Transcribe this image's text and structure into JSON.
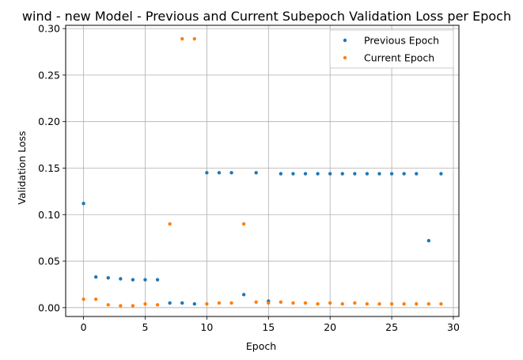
{
  "chart_data": {
    "type": "scatter",
    "title": "wind - new Model - Previous and Current Subepoch Validation Loss per Epoch",
    "xlabel": "Epoch",
    "ylabel": "Validation Loss",
    "xlim": [
      -1.45,
      30.45
    ],
    "ylim": [
      -0.0095,
      0.3035
    ],
    "xticks": [
      0,
      5,
      10,
      15,
      20,
      25,
      30
    ],
    "yticks": [
      0.0,
      0.05,
      0.1,
      0.15,
      0.2,
      0.25,
      0.3
    ],
    "ytick_labels": [
      "0.00",
      "0.05",
      "0.10",
      "0.15",
      "0.20",
      "0.25",
      "0.30"
    ],
    "grid": true,
    "legend_position": "top-right",
    "series": [
      {
        "name": "Previous Epoch",
        "color": "#1f77b4",
        "x": [
          0,
          1,
          2,
          3,
          4,
          5,
          6,
          7,
          8,
          9,
          10,
          11,
          12,
          13,
          14,
          15,
          16,
          17,
          18,
          19,
          20,
          21,
          22,
          23,
          24,
          25,
          26,
          27,
          28,
          29
        ],
        "y": [
          0.112,
          0.033,
          0.032,
          0.031,
          0.03,
          0.03,
          0.03,
          0.005,
          0.005,
          0.004,
          0.145,
          0.145,
          0.145,
          0.014,
          0.145,
          0.007,
          0.144,
          0.144,
          0.144,
          0.144,
          0.144,
          0.144,
          0.144,
          0.144,
          0.144,
          0.144,
          0.144,
          0.144,
          0.072,
          0.144
        ]
      },
      {
        "name": "Current Epoch",
        "color": "#ff7f0e",
        "x": [
          0,
          1,
          2,
          3,
          4,
          5,
          6,
          7,
          8,
          9,
          10,
          11,
          12,
          13,
          14,
          15,
          16,
          17,
          18,
          19,
          20,
          21,
          22,
          23,
          24,
          25,
          26,
          27,
          28,
          29
        ],
        "y": [
          0.009,
          0.009,
          0.003,
          0.002,
          0.002,
          0.004,
          0.003,
          0.09,
          0.289,
          0.289,
          0.004,
          0.005,
          0.005,
          0.09,
          0.006,
          0.005,
          0.006,
          0.005,
          0.005,
          0.004,
          0.005,
          0.004,
          0.005,
          0.004,
          0.004,
          0.004,
          0.004,
          0.004,
          0.004,
          0.004
        ]
      }
    ]
  }
}
